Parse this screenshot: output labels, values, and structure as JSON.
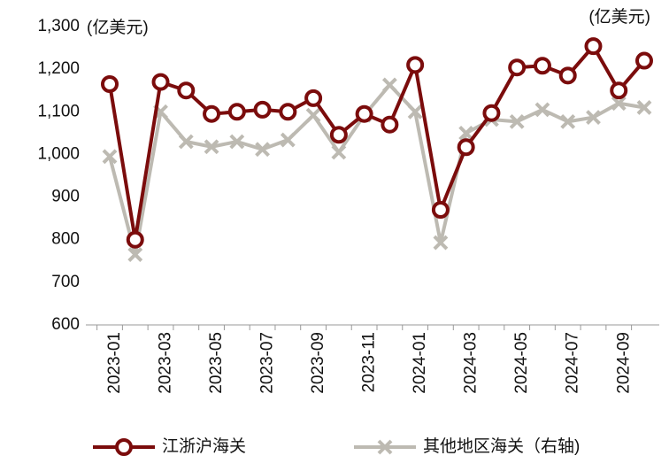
{
  "chart_data": {
    "type": "line",
    "ylabel": "(亿美元)",
    "y2label": "(亿美元)",
    "categories": [
      "2023-01",
      null,
      "2023-03",
      null,
      "2023-05",
      null,
      "2023-07",
      null,
      "2023-09",
      null,
      "2023-11",
      null,
      "2024-01",
      null,
      "2024-03",
      null,
      "2024-05",
      null,
      "2024-07",
      null,
      "2024-09",
      null
    ],
    "ylim": [
      600,
      1300
    ],
    "yticks": [
      600,
      700,
      800,
      900,
      {
        "value": 1000,
        "label": "1,000"
      },
      {
        "value": 1100,
        "label": "1,100"
      },
      {
        "value": 1200,
        "label": "1,200"
      },
      {
        "value": 1300,
        "label": "1,300"
      }
    ],
    "y2lim": [
      600,
      1300
    ],
    "series": [
      {
        "name": "江浙沪海关",
        "color": "#7b0c0c",
        "marker": "circle",
        "values": [
          1165,
          800,
          1170,
          1150,
          1095,
          1100,
          1105,
          1100,
          1132,
          1046,
          1095,
          1070,
          1210,
          870,
          1017,
          1097,
          1204,
          1208,
          1185,
          1254,
          1150,
          1220
        ]
      },
      {
        "name": "其他地区海关（右轴)",
        "color": "#bdbab2",
        "marker": "x",
        "axis": "y2",
        "values": [
          995,
          765,
          1100,
          1030,
          1018,
          1030,
          1012,
          1034,
          1092,
          1005,
          1092,
          1163,
          1100,
          793,
          1050,
          1082,
          1077,
          1105,
          1077,
          1087,
          1120,
          1110
        ]
      }
    ]
  }
}
